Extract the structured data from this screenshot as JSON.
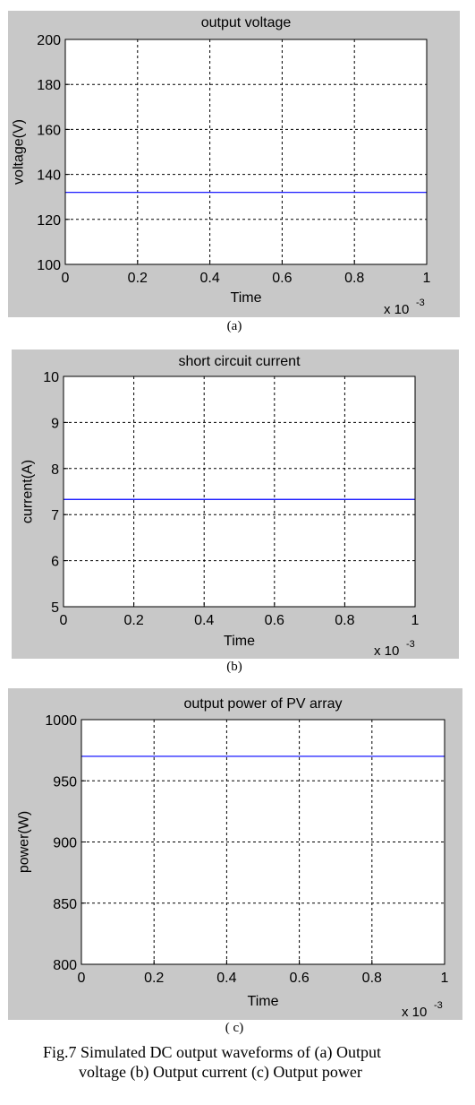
{
  "chart_data": [
    {
      "type": "line",
      "title": "output voltage",
      "xlabel": "Time",
      "ylabel": "voltage(V)",
      "x_multiplier": "x 10",
      "x_exponent": "-3",
      "xlim": [
        0,
        1
      ],
      "ylim": [
        100,
        200
      ],
      "x_ticks": [
        "0",
        "0.2",
        "0.4",
        "0.6",
        "0.8",
        "1"
      ],
      "y_ticks": [
        "100",
        "120",
        "140",
        "160",
        "180",
        "200"
      ],
      "grid": true,
      "line_color": "#0000ff",
      "series": [
        {
          "x": [
            0,
            1
          ],
          "values": [
            132,
            132
          ]
        }
      ],
      "sublabel": "(a)"
    },
    {
      "type": "line",
      "title": "short circuit current",
      "xlabel": "Time",
      "ylabel": "current(A)",
      "x_multiplier": "x 10",
      "x_exponent": "-3",
      "xlim": [
        0,
        1
      ],
      "ylim": [
        5,
        10
      ],
      "x_ticks": [
        "0",
        "0.2",
        "0.4",
        "0.6",
        "0.8",
        "1"
      ],
      "y_ticks": [
        "5",
        "6",
        "7",
        "8",
        "9",
        "10"
      ],
      "grid": true,
      "line_color": "#0000ff",
      "series": [
        {
          "x": [
            0,
            1
          ],
          "values": [
            7.33,
            7.33
          ]
        }
      ],
      "sublabel": "(b)"
    },
    {
      "type": "line",
      "title": "output power of PV array",
      "xlabel": "Time",
      "ylabel": "power(W)",
      "x_multiplier": "x 10",
      "x_exponent": "-3",
      "xlim": [
        0,
        1
      ],
      "ylim": [
        800,
        1000
      ],
      "x_ticks": [
        "0",
        "0.2",
        "0.4",
        "0.6",
        "0.8",
        "1"
      ],
      "y_ticks": [
        "800",
        "850",
        "900",
        "950",
        "1000"
      ],
      "grid": true,
      "line_color": "#0000ff",
      "series": [
        {
          "x": [
            0,
            1
          ],
          "values": [
            970,
            970
          ]
        }
      ],
      "sublabel": "( c)"
    }
  ],
  "caption": {
    "line1": "Fig.7 Simulated DC output waveforms of (a) Output",
    "line2": "voltage (b) Output current  (c) Output power"
  }
}
